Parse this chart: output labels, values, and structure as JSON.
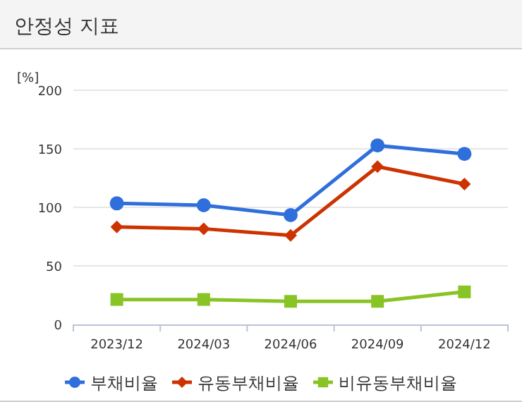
{
  "chart_data": {
    "type": "line",
    "title": "안정성 지표",
    "ylabel": "[%]",
    "categories": [
      "2023/12",
      "2024/03",
      "2024/06",
      "2024/09",
      "2024/12"
    ],
    "series": [
      {
        "name": "부채비율",
        "color": "#2f6fdc",
        "marker": "circle",
        "values": [
          103.4,
          101.8,
          93.4,
          152.9,
          145.7
        ]
      },
      {
        "name": "유동부채비율",
        "color": "#cc3300",
        "marker": "diamond",
        "values": [
          83.3,
          81.7,
          76,
          134.8,
          119.9
        ]
      },
      {
        "name": "비유동부채비율",
        "color": "#88c425",
        "marker": "square",
        "values": [
          21.3,
          21.3,
          19.7,
          19.7,
          27.8
        ]
      }
    ],
    "ylim": [
      0,
      200
    ],
    "yticks": [
      0,
      50,
      100,
      150,
      200
    ],
    "grid": "y",
    "legend": "bottom",
    "line_style": "solid"
  }
}
